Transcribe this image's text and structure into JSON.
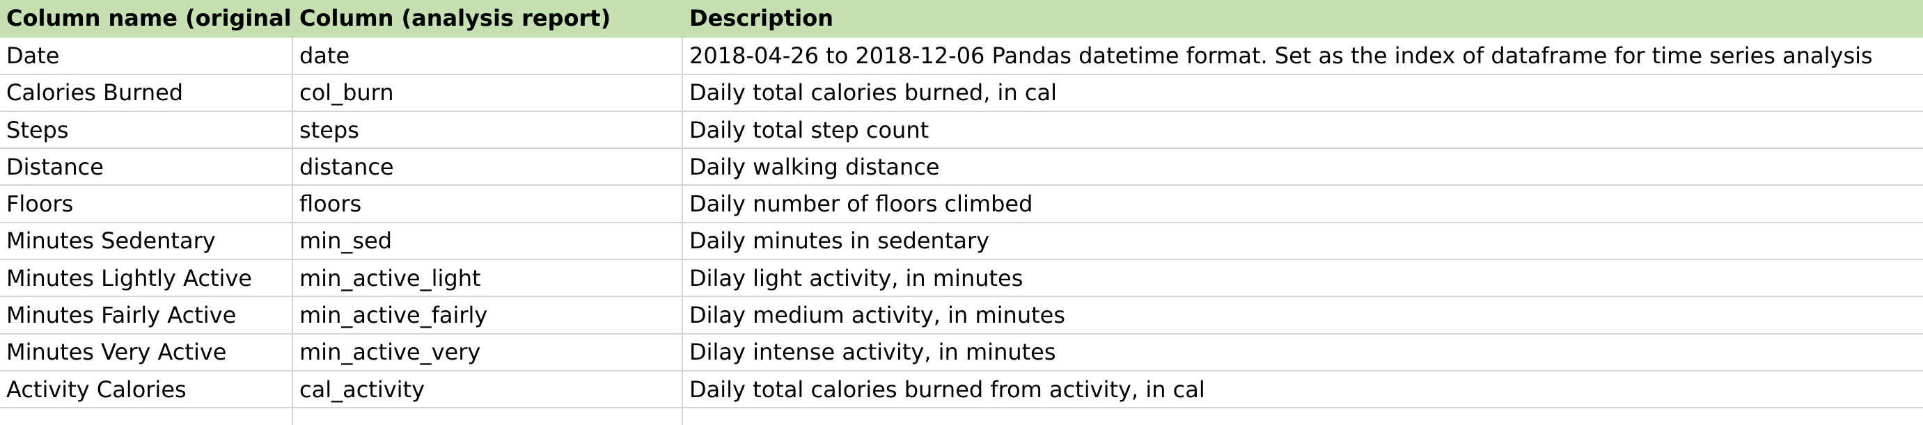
{
  "colors": {
    "header_bg": "#c6e0b4",
    "grid_line": "#d4d4d4",
    "text": "#000000"
  },
  "table": {
    "headers": [
      "Column name (original)",
      "Column (analysis report)",
      "Description"
    ],
    "rows": [
      [
        "Date",
        "date",
        "2018-04-26 to 2018-12-06 Pandas datetime format.  Set as the index of dataframe for time series analysis"
      ],
      [
        "Calories Burned",
        "col_burn",
        "Daily total calories burned, in cal"
      ],
      [
        "Steps",
        "steps",
        "Daily total step count"
      ],
      [
        "Distance",
        "distance",
        "Daily walking distance"
      ],
      [
        "Floors",
        "floors",
        "Daily number of floors climbed"
      ],
      [
        "Minutes Sedentary",
        "min_sed",
        "Daily minutes in sedentary"
      ],
      [
        "Minutes Lightly Active",
        "min_active_light",
        "Dilay light activity, in minutes"
      ],
      [
        "Minutes Fairly Active",
        "min_active_fairly",
        "Dilay medium activity, in minutes"
      ],
      [
        "Minutes Very Active",
        "min_active_very",
        "Dilay intense activity, in minutes"
      ],
      [
        "Activity Calories",
        "cal_activity",
        "Daily total calories burned from activity, in cal"
      ]
    ]
  }
}
